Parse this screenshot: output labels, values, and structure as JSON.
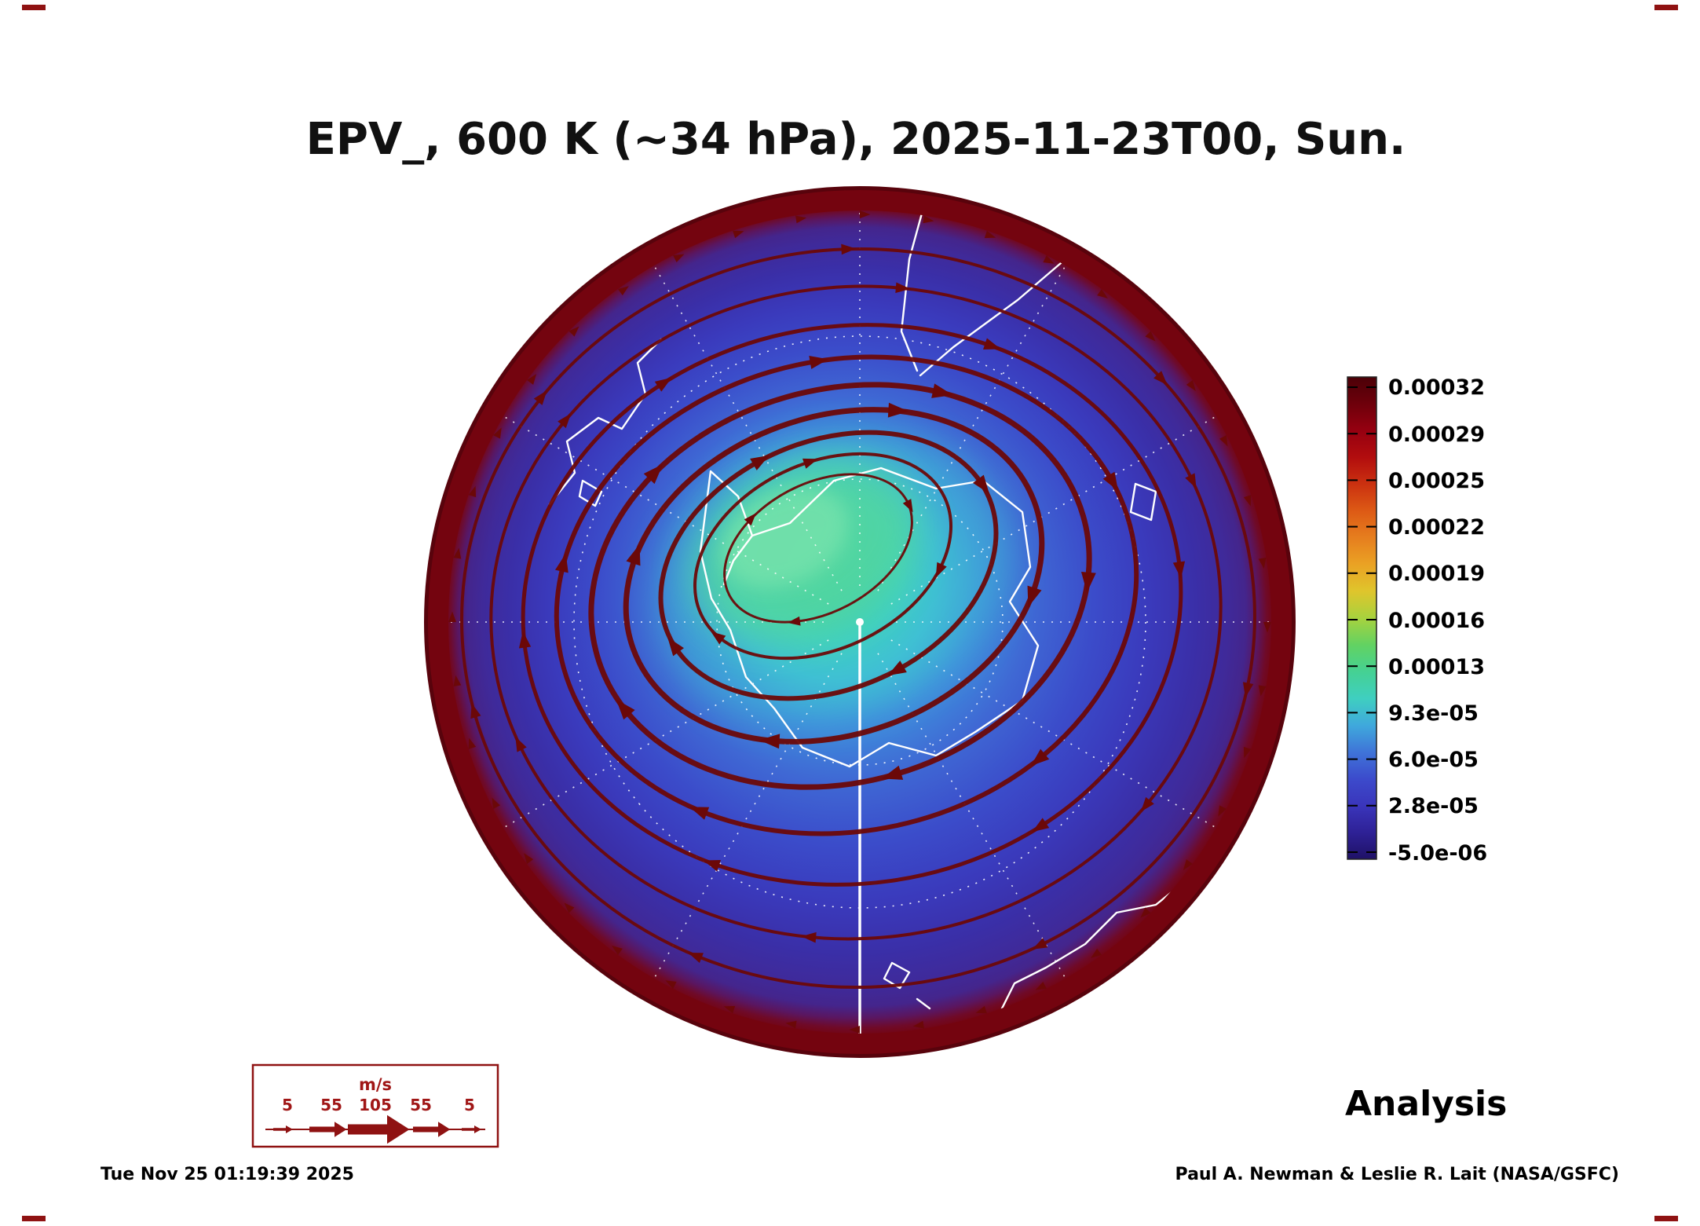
{
  "title": "EPV_, 600 K (~34 hPa), 2025-11-23T00, Sun.",
  "footer": {
    "generated": "Tue Nov 25 01:19:39 2025",
    "credit": "Paul A. Newman & Leslie R. Lait (NASA/GSFC)",
    "analysis_label": "Analysis"
  },
  "wind_legend": {
    "units_label": "m/s",
    "speed_ticks": [
      "5",
      "55",
      "105",
      "55",
      "5"
    ]
  },
  "colorbar": {
    "tick_labels": [
      "0.00032",
      "0.00029",
      "0.00025",
      "0.00022",
      "0.00019",
      "0.00016",
      "0.00013",
      "9.3e-05",
      "6.0e-05",
      "2.8e-05",
      "-5.0e-06"
    ],
    "colors_top_to_bottom": [
      "#4b0007",
      "#6e000b",
      "#960010",
      "#b20d0e",
      "#cb3110",
      "#dd5a15",
      "#e67e1e",
      "#eaa224",
      "#dfc52c",
      "#a8d23e",
      "#62d262",
      "#45d193",
      "#3fcfc0",
      "#3fa9dc",
      "#3f74d8",
      "#3c4bcc",
      "#3a35bb",
      "#2e2196",
      "#1f1166"
    ]
  },
  "colors": {
    "stream": "#6b0808",
    "rim": "#74040f",
    "rim_outer": "#58030c",
    "coast": "#ffffff",
    "graticule": "#ffffff",
    "legend_accent": "#a01616",
    "legend_border": "#8f1212",
    "text": "#000000"
  },
  "chart_data": {
    "type": "heatmap",
    "title": "EPV_, 600 K (~34 hPa), 2025-11-23T00, Sun.",
    "variable": "EPV_",
    "level": "600 K (~34 hPa)",
    "valid_time": "2025-11-23T00",
    "valid_day": "Sun.",
    "projection": "southern-hemisphere polar stereographic (South Pole centered)",
    "legend_position": "right",
    "colorbar_ticks": [
      0.00032,
      0.00029,
      0.00025,
      0.00022,
      0.00019,
      0.00016,
      0.00013,
      9.3e-05,
      6e-05,
      2.8e-05,
      -5e-06
    ],
    "colorbar_tick_labels": [
      "0.00032",
      "0.00029",
      "0.00025",
      "0.00022",
      "0.00019",
      "0.00016",
      "0.00013",
      "9.3e-05",
      "6.0e-05",
      "2.8e-05",
      "-5.0e-06"
    ],
    "colorbar_range": [
      -5e-06,
      0.00032
    ],
    "field_profile_estimate": [
      {
        "region": "pole / vortex core (green)",
        "epv": 0.00013
      },
      {
        "region": "vortex edge band (cyan)",
        "epv": 9.3e-05
      },
      {
        "region": "midlatitudes (blue)",
        "epv": 5e-05
      },
      {
        "region": "subtropics (indigo/purple)",
        "epv": 2.8e-05
      },
      {
        "region": "outer rim ring (dark maroon)",
        "epv": 0.00032
      }
    ],
    "overlays": [
      "wind streamlines with arrowheads, line thickness proportional to speed (5-105 m/s)",
      "white coastlines (Antarctica centered)",
      "dashed white latitude/longitude graticule",
      "solid white meridian line from pole to bottom edge"
    ],
    "wind_speed_scale_ms": [
      5,
      55,
      105,
      55,
      5
    ],
    "flow_direction": "clockwise circumpolar vortex",
    "analysis_type": "Analysis"
  }
}
